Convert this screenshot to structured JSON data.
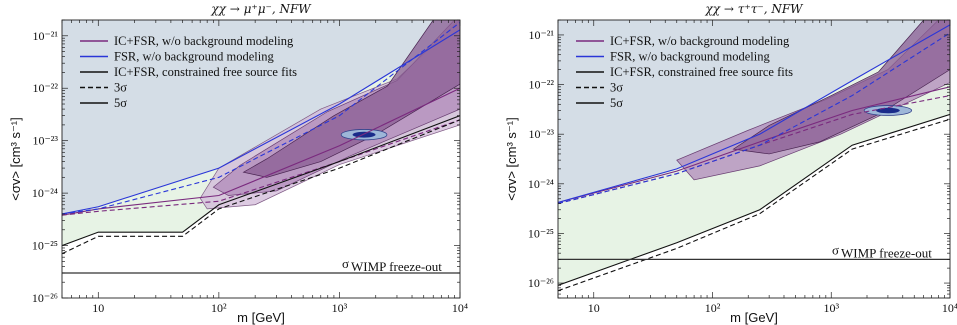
{
  "colors": {
    "background_region": "#d4dde6",
    "green_band": "#e4f2e2",
    "gray_band": "#d6d6d6",
    "purple_light": "#d2b9d8",
    "purple_mid": "#b08ab9",
    "purple_dark": "#8a5d93",
    "ic_fsr_line": "#7a2a7e",
    "fsr_line": "#2a36d8",
    "black_line": "#111111",
    "wimp_line": "#333333",
    "best_fit_dark": "#1a2b8a",
    "best_fit_light": "#9db6d8"
  },
  "chart_data": [
    {
      "type": "line",
      "title": "χχ → μ⁺μ⁻, NFW",
      "xlabel": "m [GeV]",
      "ylabel": "<σv> [cm³ s⁻¹]",
      "xscale": "log",
      "yscale": "log",
      "xlim": [
        5,
        10000
      ],
      "ylim": [
        1e-26,
        2e-21
      ],
      "x_ticks": [
        {
          "v": 10,
          "label": "10"
        },
        {
          "v": 100,
          "label": "10²"
        },
        {
          "v": 1000,
          "label": "10³"
        },
        {
          "v": 10000,
          "label": "10⁴"
        }
      ],
      "y_ticks": [
        {
          "v": 1e-26,
          "label": "10⁻²⁶"
        },
        {
          "v": 1e-25,
          "label": "10⁻²⁵"
        },
        {
          "v": 1e-24,
          "label": "10⁻²⁴"
        },
        {
          "v": 1e-23,
          "label": "10⁻²³"
        },
        {
          "v": 1e-22,
          "label": "10⁻²²"
        },
        {
          "v": 1e-21,
          "label": "10⁻²¹"
        }
      ],
      "legend_position": "top-left",
      "legend": [
        {
          "label": "IC+FSR, w/o background modeling",
          "style": "purple"
        },
        {
          "label": "FSR, w/o background modeling",
          "style": "blue"
        },
        {
          "label": "IC+FSR, constrained free source fits",
          "style": "black"
        },
        {
          "label": "3σ",
          "style": "dashed"
        },
        {
          "label": "5σ",
          "style": "solid"
        }
      ],
      "annotation": "σ",
      "annotation_sub": "WIMP freeze-out",
      "wimp_level": 3e-26,
      "series": [
        {
          "name": "IC+FSR, w/o background modeling",
          "style": "purple-dashed",
          "x": [
            5,
            10,
            100,
            1000,
            10000
          ],
          "y": [
            3.8e-25,
            4.5e-25,
            7e-25,
            4e-24,
            2.5e-23
          ]
        },
        {
          "name": "IC+FSR, w/o background modeling",
          "style": "purple-solid",
          "x": [
            5,
            10,
            100,
            1000,
            10000
          ],
          "y": [
            3.8e-25,
            5e-25,
            9e-25,
            8e-24,
            1e-22
          ]
        },
        {
          "name": "FSR, w/o background modeling",
          "style": "blue-dashed",
          "x": [
            5,
            10,
            100,
            1000,
            10000
          ],
          "y": [
            4e-25,
            5e-25,
            2e-24,
            3e-23,
            1.8e-21
          ]
        },
        {
          "name": "FSR, w/o background modeling",
          "style": "blue-solid",
          "x": [
            5,
            10,
            100,
            1000,
            10000
          ],
          "y": [
            4e-25,
            5.5e-25,
            3e-24,
            5e-23,
            1.3e-21
          ]
        },
        {
          "name": "IC+FSR, constrained free source fits",
          "style": "black-dashed",
          "x": [
            5,
            10,
            50,
            100,
            1000,
            10000
          ],
          "y": [
            7e-26,
            1.5e-25,
            1.5e-25,
            5e-25,
            3e-24,
            2.5e-23
          ]
        },
        {
          "name": "IC+FSR, constrained free source fits",
          "style": "black-solid",
          "x": [
            5,
            10,
            50,
            100,
            1000,
            10000
          ],
          "y": [
            1e-25,
            1.8e-25,
            1.8e-25,
            6e-25,
            4e-24,
            3e-23
          ]
        }
      ],
      "regions": [
        {
          "name": "5σ-contour",
          "x": [
            10000,
            10000,
            3000,
            700,
            100,
            70,
            80,
            200,
            1000,
            10000
          ],
          "y": [
            2e-21,
            2e-21,
            1.5e-22,
            4e-23,
            3e-24,
            8e-25,
            5e-25,
            6e-25,
            3.5e-24,
            2e-23
          ]
        },
        {
          "name": "3σ-contour",
          "x": [
            10000,
            9000,
            3000,
            800,
            150,
            90,
            120,
            300,
            1200,
            10000
          ],
          "y": [
            2e-21,
            2e-21,
            1.4e-22,
            3.6e-23,
            3.4e-24,
            1.3e-24,
            9e-25,
            1.1e-24,
            5e-24,
            4e-23
          ]
        },
        {
          "name": "1σ-contour",
          "x": [
            10000,
            6000,
            2500,
            900,
            250,
            160,
            250,
            700,
            2000,
            10000
          ],
          "y": [
            2e-21,
            2e-21,
            1.1e-22,
            3e-23,
            4.5e-24,
            2.5e-24,
            2e-24,
            4e-24,
            1.3e-23,
            1.2e-22
          ]
        }
      ],
      "best_fit": {
        "x": 1600,
        "y": 1.3e-23,
        "rx": 0.19,
        "ry": 0.1
      }
    },
    {
      "type": "line",
      "title": "χχ → τ⁺τ⁻, NFW",
      "xlabel": "m [GeV]",
      "ylabel": "<σv> [cm³ s⁻¹]",
      "xscale": "log",
      "yscale": "log",
      "xlim": [
        5,
        10000
      ],
      "ylim": [
        5e-27,
        2e-21
      ],
      "x_ticks": [
        {
          "v": 10,
          "label": "10"
        },
        {
          "v": 100,
          "label": "10²"
        },
        {
          "v": 1000,
          "label": "10³"
        },
        {
          "v": 10000,
          "label": "10⁴"
        }
      ],
      "y_ticks": [
        {
          "v": 1e-26,
          "label": "10⁻²⁶"
        },
        {
          "v": 1e-25,
          "label": "10⁻²⁵"
        },
        {
          "v": 1e-24,
          "label": "10⁻²⁴"
        },
        {
          "v": 1e-23,
          "label": "10⁻²³"
        },
        {
          "v": 1e-22,
          "label": "10⁻²²"
        },
        {
          "v": 1e-21,
          "label": "10⁻²¹"
        }
      ],
      "legend_position": "top-left",
      "legend": [
        {
          "label": "IC+FSR, w/o background modeling",
          "style": "purple"
        },
        {
          "label": "FSR, w/o background modeling",
          "style": "blue"
        },
        {
          "label": "IC+FSR, constrained free source fits",
          "style": "black"
        },
        {
          "label": "3σ",
          "style": "dashed"
        },
        {
          "label": "5σ",
          "style": "solid"
        }
      ],
      "annotation": "σ",
      "annotation_sub": "WIMP freeze-out",
      "wimp_level": 3e-26,
      "series": [
        {
          "name": "IC+FSR, w/o background modeling",
          "style": "purple-dashed",
          "x": [
            5,
            50,
            250,
            1500,
            10000
          ],
          "y": [
            4e-25,
            1.6e-24,
            6e-24,
            2.5e-23,
            6e-23
          ]
        },
        {
          "name": "IC+FSR, w/o background modeling",
          "style": "purple-solid",
          "x": [
            5,
            50,
            250,
            1500,
            10000
          ],
          "y": [
            4.2e-25,
            1.8e-24,
            7e-24,
            3e-23,
            9e-23
          ]
        },
        {
          "name": "FSR, w/o background modeling",
          "style": "blue-dashed",
          "x": [
            5,
            50,
            250,
            1500,
            10000
          ],
          "y": [
            4e-25,
            1.6e-24,
            6e-24,
            6e-23,
            1.1e-21
          ]
        },
        {
          "name": "FSR, w/o background modeling",
          "style": "blue-solid",
          "x": [
            5,
            50,
            250,
            1500,
            10000
          ],
          "y": [
            4.2e-25,
            2e-24,
            1e-23,
            1.2e-22,
            1.6e-21
          ]
        },
        {
          "name": "IC+FSR, constrained free source fits",
          "style": "black-dashed",
          "x": [
            5,
            50,
            250,
            1500,
            10000
          ],
          "y": [
            7e-27,
            5e-26,
            2.5e-25,
            5e-24,
            2e-23
          ]
        },
        {
          "name": "IC+FSR, constrained free source fits",
          "style": "black-solid",
          "x": [
            5,
            50,
            250,
            1500,
            10000
          ],
          "y": [
            9e-27,
            6.5e-26,
            3e-25,
            6e-24,
            2.5e-23
          ]
        }
      ],
      "regions": [
        {
          "name": "3σ-contour",
          "x": [
            10000,
            8000,
            3000,
            900,
            200,
            50,
            70,
            250,
            1200,
            10000
          ],
          "y": [
            2e-21,
            2e-21,
            2e-22,
            5e-23,
            1.2e-23,
            3e-24,
            1.2e-24,
            2.3e-24,
            1e-23,
            1.1e-22
          ]
        },
        {
          "name": "1σ-contour",
          "x": [
            10000,
            6000,
            2500,
            1000,
            300,
            150,
            300,
            800,
            2500,
            10000
          ],
          "y": [
            2e-21,
            2e-21,
            1.8e-22,
            6e-23,
            1.5e-23,
            5e-24,
            4e-24,
            7e-24,
            2.5e-23,
            2e-22
          ]
        }
      ],
      "best_fit": {
        "x": 3000,
        "y": 3e-23,
        "rx": 0.2,
        "ry": 0.1
      }
    }
  ]
}
